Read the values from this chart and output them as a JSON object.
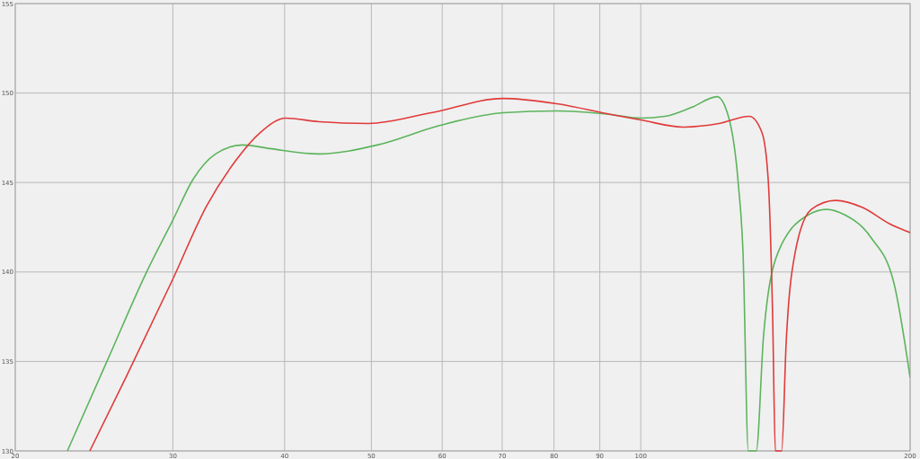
{
  "chart_data": {
    "type": "line",
    "log": "x",
    "grid": true,
    "xlim": [
      20,
      200
    ],
    "ylim": [
      130,
      155
    ],
    "xticks": [
      20,
      30,
      40,
      50,
      60,
      70,
      80,
      90,
      100,
      200
    ],
    "yticks": [
      130,
      135,
      140,
      145,
      150,
      155
    ],
    "series": [
      {
        "color": "#5cb45c",
        "x": [
          22.87,
          25.37,
          28.04,
          30,
          31.62,
          33.49,
          35.9,
          38.47,
          43.69,
          50.78,
          59.7,
          70.18,
          80.61,
          92.63,
          100,
          106.4,
          114,
          121.7,
          125.3,
          128.5,
          130.1,
          131.9,
          134.6,
          137.2,
          142.4,
          154,
          161.3,
          168.9,
          181,
          191.8,
          200
        ],
        "values": [
          130,
          135.1,
          140,
          142.9,
          145.2,
          146.6,
          147.1,
          146.9,
          146.6,
          147.1,
          148.2,
          148.9,
          149,
          148.8,
          148.6,
          148.7,
          149.2,
          149.8,
          148.7,
          145,
          141.1,
          130,
          130,
          136.5,
          141.1,
          143.2,
          143.5,
          143.2,
          141.9,
          139.4,
          134.1
        ]
      },
      {
        "color": "#e03a3a",
        "x": [
          24.23,
          26.58,
          30,
          32.73,
          35.24,
          37.59,
          40.12,
          43.69,
          49.62,
          58.33,
          70.18,
          80.61,
          92.63,
          100,
          111.4,
          122.3,
          132.2,
          136.6,
          138.8,
          140.4,
          141.4,
          143.7,
          145.4,
          148.8,
          155.1,
          165.1,
          177,
          189.6,
          200
        ],
        "values": [
          130,
          134.1,
          139.6,
          143.7,
          146.2,
          147.8,
          148.6,
          148.4,
          148.3,
          148.9,
          149.7,
          149.4,
          148.8,
          148.5,
          148.1,
          148.3,
          148.7,
          147.8,
          145.2,
          137.6,
          130,
          130,
          136.1,
          141.1,
          143.5,
          144,
          143.6,
          142.7,
          142.2
        ]
      }
    ]
  }
}
